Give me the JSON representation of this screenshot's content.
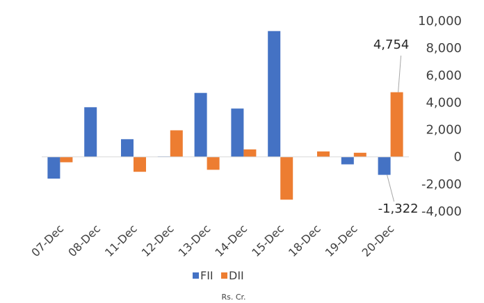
{
  "chart_data": {
    "type": "bar",
    "categories": [
      "07-Dec",
      "08-Dec",
      "11-Dec",
      "12-Dec",
      "13-Dec",
      "14-Dec",
      "15-Dec",
      "18-Dec",
      "19-Dec",
      "20-Dec"
    ],
    "series": [
      {
        "name": "FII",
        "color": "#4472C4",
        "values": [
          -1600,
          3650,
          1300,
          30,
          4700,
          3550,
          9250,
          0,
          -550,
          -1322
        ]
      },
      {
        "name": "DII",
        "color": "#ED7D31",
        "values": [
          -400,
          0,
          -1100,
          1950,
          -950,
          550,
          -3150,
          400,
          300,
          4754
        ]
      }
    ],
    "ylim": [
      -4000,
      10000
    ],
    "yticks": [
      -4000,
      -2000,
      0,
      2000,
      4000,
      6000,
      8000,
      10000
    ],
    "ytick_labels": [
      "-4,000",
      "-2,000",
      "0",
      "2,000",
      "4,000",
      "6,000",
      "8,000",
      "10,000"
    ],
    "y_axis_position": "right",
    "grid": false,
    "legend_position": "bottom",
    "unit": "Rs. Cr.",
    "annotations": [
      {
        "series": "DII",
        "category": "20-Dec",
        "text": "4,754"
      },
      {
        "series": "FII",
        "category": "20-Dec",
        "text": "-1,322"
      }
    ]
  }
}
